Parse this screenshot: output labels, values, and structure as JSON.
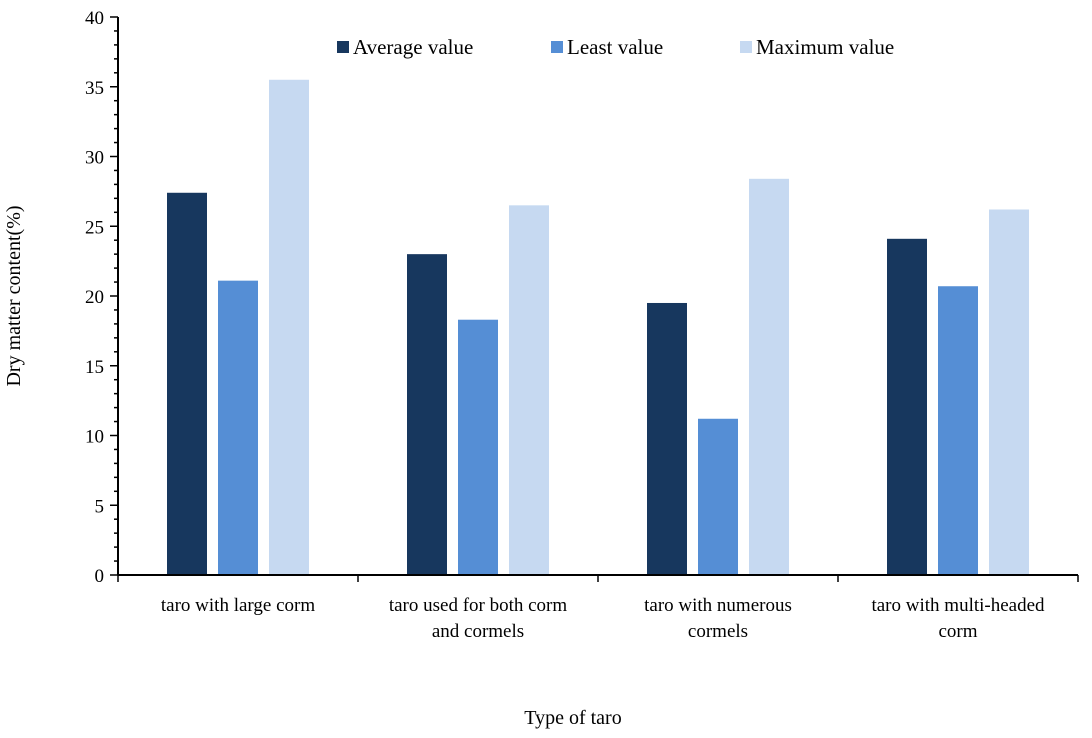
{
  "chart_data": {
    "type": "bar",
    "xlabel": "Type of taro",
    "ylabel": "Dry matter content(%)",
    "ylim": [
      0,
      40
    ],
    "yticks": [
      0,
      5,
      10,
      15,
      20,
      25,
      30,
      35,
      40
    ],
    "categories": [
      [
        "taro with large corm"
      ],
      [
        "taro used for both corm",
        "and cormels"
      ],
      [
        "taro with numerous",
        "cormels"
      ],
      [
        "taro with multi-headed",
        "corm"
      ]
    ],
    "series": [
      {
        "name": "Average value",
        "color": "#17375e",
        "values": [
          27.4,
          23.0,
          19.5,
          24.1
        ]
      },
      {
        "name": "Least value",
        "color": "#558ed5",
        "values": [
          21.1,
          18.3,
          11.2,
          20.7
        ]
      },
      {
        "name": "Maximum value",
        "color": "#c6d9f1",
        "values": [
          35.5,
          26.5,
          28.4,
          26.2
        ]
      }
    ],
    "legend_position": "top-right",
    "grid": false
  }
}
